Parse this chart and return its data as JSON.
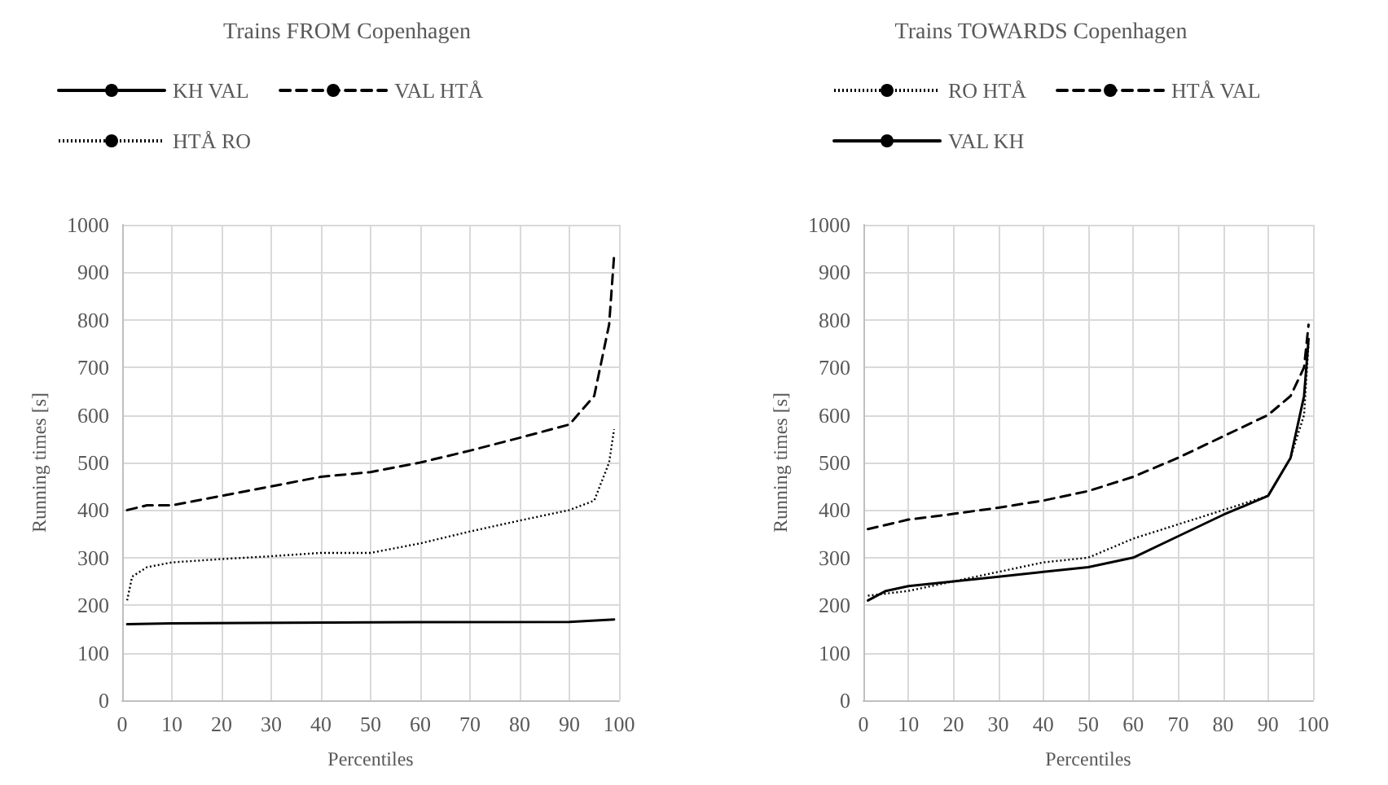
{
  "chart_data": [
    {
      "type": "line",
      "title": "Trains FROM Copenhagen",
      "xlabel": "Percentiles",
      "ylabel": "Running times [s]",
      "xlim": [
        0,
        100
      ],
      "xticks": [
        0,
        10,
        20,
        30,
        40,
        50,
        60,
        70,
        80,
        90,
        100
      ],
      "ylim": [
        0,
        1000
      ],
      "yticks": [
        0,
        100,
        200,
        300,
        400,
        500,
        600,
        700,
        800,
        900,
        1000
      ],
      "grid": true,
      "legend": "top",
      "marker": "none",
      "series": [
        {
          "name": "KH VAL",
          "color": "#000000",
          "line_style": "solid",
          "x": [
            1,
            10,
            50,
            90,
            99
          ],
          "values": [
            160,
            162,
            164,
            165,
            170
          ]
        },
        {
          "name": "VAL HTÅ",
          "color": "#000000",
          "line_style": "dashed",
          "x": [
            1,
            5,
            10,
            20,
            30,
            40,
            50,
            60,
            70,
            80,
            90,
            95,
            98,
            99
          ],
          "values": [
            400,
            410,
            410,
            430,
            450,
            470,
            480,
            500,
            525,
            552,
            580,
            640,
            790,
            935
          ]
        },
        {
          "name": "HTÅ RO",
          "color": "#000000",
          "line_style": "dotted",
          "x": [
            1,
            2,
            5,
            10,
            20,
            30,
            40,
            50,
            60,
            70,
            80,
            90,
            95,
            98,
            99
          ],
          "values": [
            210,
            260,
            280,
            290,
            297,
            303,
            310,
            310,
            330,
            355,
            378,
            400,
            420,
            500,
            570
          ]
        }
      ]
    },
    {
      "type": "line",
      "title": "Trains TOWARDS Copenhagen",
      "xlabel": "Percentiles",
      "ylabel": "Running times [s]",
      "xlim": [
        0,
        100
      ],
      "xticks": [
        0,
        10,
        20,
        30,
        40,
        50,
        60,
        70,
        80,
        90,
        100
      ],
      "ylim": [
        0,
        1000
      ],
      "yticks": [
        0,
        100,
        200,
        300,
        400,
        500,
        600,
        700,
        800,
        900,
        1000
      ],
      "grid": true,
      "legend": "top",
      "marker": "none",
      "series": [
        {
          "name": "RO HTÅ",
          "color": "#000000",
          "line_style": "dotted",
          "x": [
            1,
            10,
            20,
            30,
            40,
            50,
            60,
            70,
            80,
            90,
            95,
            98,
            99
          ],
          "values": [
            220,
            230,
            250,
            270,
            290,
            300,
            340,
            370,
            400,
            430,
            510,
            600,
            750
          ]
        },
        {
          "name": "HTÅ VAL",
          "color": "#000000",
          "line_style": "dashed",
          "x": [
            1,
            10,
            20,
            30,
            40,
            50,
            60,
            70,
            80,
            90,
            95,
            98,
            99
          ],
          "values": [
            360,
            380,
            392,
            405,
            420,
            440,
            470,
            510,
            555,
            600,
            640,
            700,
            790
          ]
        },
        {
          "name": "VAL KH",
          "color": "#000000",
          "line_style": "solid",
          "x": [
            1,
            5,
            10,
            20,
            30,
            40,
            50,
            60,
            70,
            80,
            90,
            95,
            98,
            99
          ],
          "values": [
            210,
            230,
            240,
            250,
            260,
            270,
            280,
            300,
            345,
            390,
            430,
            510,
            640,
            760
          ]
        }
      ]
    }
  ]
}
